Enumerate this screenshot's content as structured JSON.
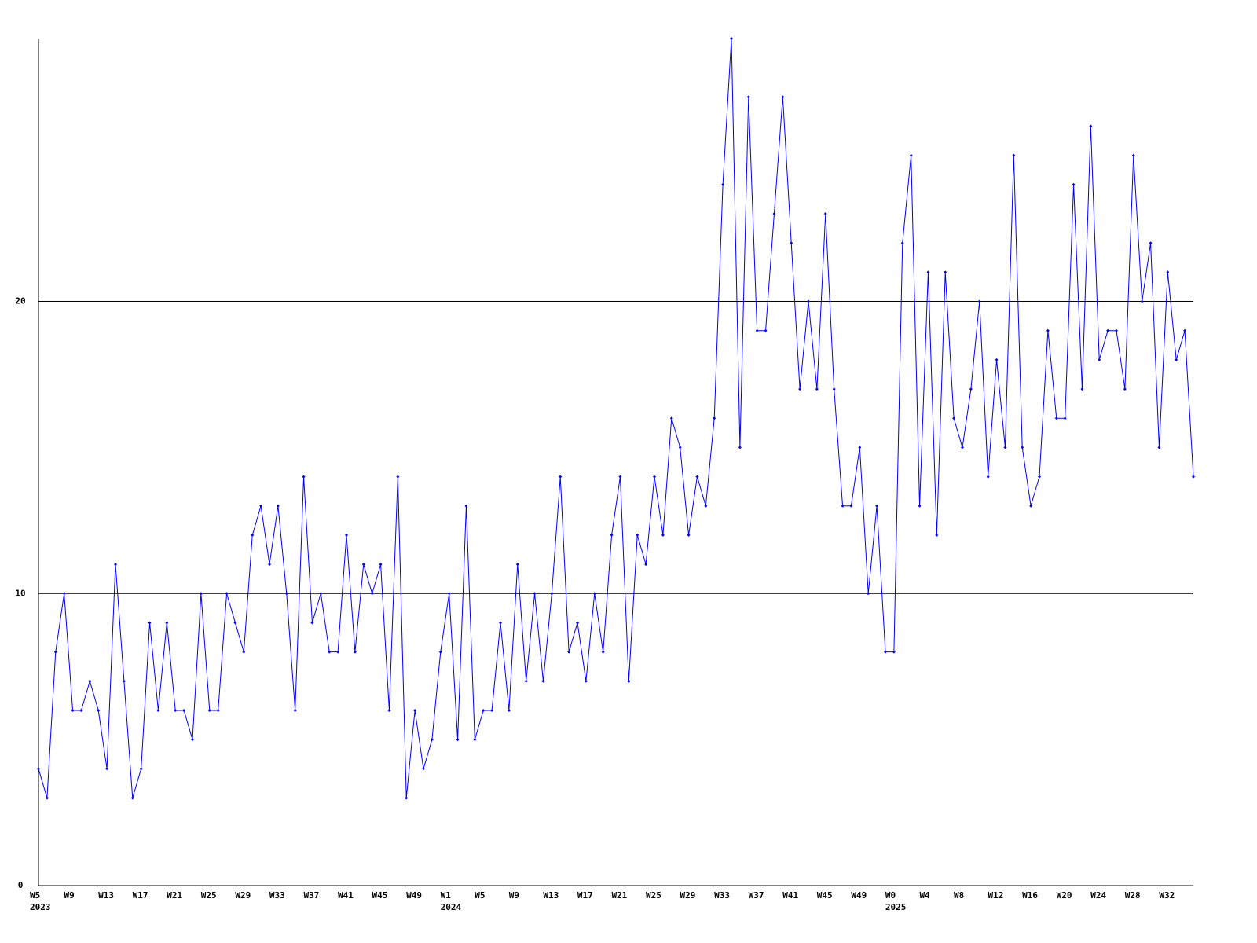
{
  "chart_data": {
    "type": "line",
    "color": "#0000ff",
    "categories": [
      "W5\n2023",
      null,
      null,
      null,
      "W9",
      null,
      null,
      null,
      "W13",
      null,
      null,
      null,
      "W17",
      null,
      null,
      null,
      "W21",
      null,
      null,
      null,
      "W25",
      null,
      null,
      null,
      "W29",
      null,
      null,
      null,
      "W33",
      null,
      null,
      null,
      "W37",
      null,
      null,
      null,
      "W41",
      null,
      null,
      null,
      "W45",
      null,
      null,
      null,
      "W49",
      null,
      null,
      null,
      "W1\n2024",
      null,
      null,
      null,
      "W5",
      null,
      null,
      null,
      "W9",
      null,
      null,
      null,
      "W13",
      null,
      null,
      null,
      "W17",
      null,
      null,
      null,
      "W21",
      null,
      null,
      null,
      "W25",
      null,
      null,
      null,
      "W29",
      null,
      null,
      null,
      "W33",
      null,
      null,
      null,
      "W37",
      null,
      null,
      null,
      "W41",
      null,
      null,
      null,
      "W45",
      null,
      null,
      null,
      "W49",
      null,
      null,
      null,
      "W0\n2025",
      null,
      null,
      null,
      "W4",
      null,
      null,
      null,
      "W8",
      null,
      null,
      null,
      "W12",
      null,
      null,
      null,
      "W16",
      null,
      null,
      null,
      "W20",
      null,
      null,
      null,
      "W24",
      null,
      null,
      null,
      "W28",
      null,
      null,
      null,
      "W32",
      null,
      null,
      null
    ],
    "values": [
      4,
      3,
      8,
      10,
      6,
      6,
      7,
      6,
      4,
      11,
      7,
      3,
      4,
      9,
      6,
      9,
      6,
      6,
      5,
      10,
      6,
      6,
      10,
      9,
      8,
      12,
      13,
      11,
      13,
      10,
      6,
      14,
      9,
      10,
      8,
      8,
      12,
      8,
      11,
      10,
      11,
      6,
      14,
      3,
      6,
      4,
      5,
      8,
      10,
      5,
      13,
      5,
      6,
      6,
      9,
      6,
      11,
      7,
      10,
      7,
      10,
      14,
      8,
      9,
      7,
      10,
      8,
      12,
      14,
      7,
      12,
      11,
      14,
      12,
      16,
      15,
      12,
      14,
      13,
      16,
      24,
      29,
      15,
      27,
      19,
      19,
      23,
      27,
      22,
      17,
      20,
      17,
      23,
      17,
      13,
      13,
      15,
      10,
      13,
      8,
      8,
      22,
      25,
      13,
      21,
      12,
      21,
      16,
      15,
      17,
      20,
      14,
      18,
      15,
      25,
      15,
      13,
      14,
      19,
      16,
      16,
      24,
      17,
      26,
      18,
      19,
      19,
      17,
      25,
      20,
      22,
      15,
      21,
      18,
      19,
      14
    ],
    "ylim": [
      0,
      29
    ],
    "yticks": [
      0,
      10,
      20
    ],
    "grid": true
  }
}
